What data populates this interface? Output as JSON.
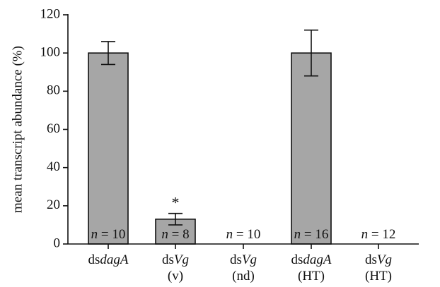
{
  "chart_data": {
    "type": "bar",
    "ylabel": "mean transcript abundance (%)",
    "ylim": [
      0,
      120
    ],
    "yticks": [
      0,
      20,
      40,
      60,
      80,
      100,
      120
    ],
    "grid": false,
    "bar_color": "#a6a6a6",
    "categories": [
      {
        "prefix": "ds",
        "gene": "dagA",
        "sub": ""
      },
      {
        "prefix": "ds",
        "gene": "Vg",
        "sub": "(v)"
      },
      {
        "prefix": "ds",
        "gene": "Vg",
        "sub": "(nd)"
      },
      {
        "prefix": "ds",
        "gene": "dagA",
        "sub": "(HT)"
      },
      {
        "prefix": "ds",
        "gene": "Vg",
        "sub": "(HT)"
      }
    ],
    "values": [
      100,
      13,
      0,
      100,
      0
    ],
    "error_low": [
      94,
      10,
      null,
      88,
      null
    ],
    "error_high": [
      106,
      16,
      null,
      112,
      null
    ],
    "n_labels": [
      "10",
      "8",
      "10",
      "16",
      "12"
    ],
    "n_prefix": "n",
    "n_eq": " = ",
    "annotations": [
      {
        "bar_index": 1,
        "text": "*"
      }
    ]
  }
}
